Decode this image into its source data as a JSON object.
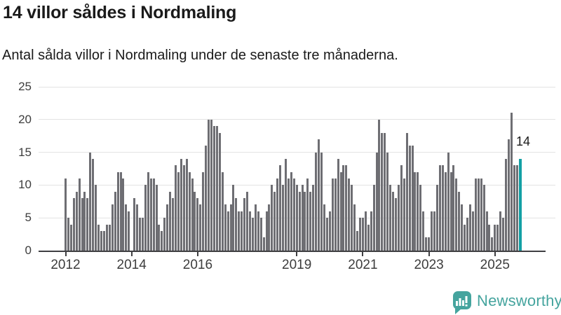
{
  "header": {
    "title": "14 villor såldes i Nordmaling",
    "subtitle": "Antal sålda villor i Nordmaling under de senaste tre månaderna."
  },
  "chart_data": {
    "type": "bar",
    "title": "14 villor såldes i Nordmaling",
    "subtitle": "Antal sålda villor i Nordmaling under de senaste tre månaderna.",
    "xlabel": "",
    "ylabel": "",
    "frequency": "monthly",
    "x_start": "2012-01",
    "x_end": "2025-10",
    "ylim": [
      0,
      25
    ],
    "yticks": [
      0,
      5,
      10,
      15,
      20,
      25
    ],
    "xticks": [
      {
        "label": "2012",
        "year": 2012
      },
      {
        "label": "2014",
        "year": 2014
      },
      {
        "label": "2016",
        "year": 2016
      },
      {
        "label": "2019",
        "year": 2019
      },
      {
        "label": "2021",
        "year": 2021
      },
      {
        "label": "2023",
        "year": 2023
      },
      {
        "label": "2025",
        "year": 2025
      }
    ],
    "grid": "horizontal",
    "legend": "none",
    "bar_color": "#6e6e73",
    "values": [
      11,
      5,
      4,
      8,
      9,
      11,
      8,
      9,
      8,
      15,
      14,
      10,
      4,
      3,
      3,
      4,
      4,
      7,
      9,
      12,
      12,
      11,
      7,
      6,
      0,
      8,
      7,
      5,
      5,
      10,
      12,
      11,
      11,
      10,
      4,
      3,
      5,
      7,
      9,
      8,
      13,
      12,
      14,
      13,
      14,
      12,
      11,
      9,
      8,
      7,
      12,
      16,
      20,
      20,
      19,
      19,
      18,
      12,
      7,
      6,
      7,
      10,
      8,
      6,
      6,
      8,
      9,
      6,
      5,
      7,
      6,
      5,
      2,
      6,
      7,
      10,
      9,
      11,
      13,
      10,
      14,
      11,
      12,
      11,
      10,
      9,
      10,
      9,
      11,
      9,
      10,
      15,
      17,
      15,
      7,
      5,
      6,
      11,
      11,
      14,
      12,
      13,
      13,
      11,
      10,
      7,
      3,
      5,
      5,
      6,
      4,
      6,
      10,
      15,
      20,
      18,
      18,
      15,
      10,
      9,
      8,
      10,
      13,
      11,
      18,
      16,
      16,
      12,
      12,
      10,
      6,
      2,
      2,
      6,
      6,
      10,
      13,
      13,
      12,
      15,
      12,
      13,
      11,
      9,
      7,
      4,
      5,
      7,
      6,
      11,
      11,
      11,
      10,
      6,
      4,
      2,
      4,
      4,
      6,
      5,
      14,
      17,
      21,
      13,
      13,
      14
    ],
    "highlight": {
      "index": 165,
      "value": 14,
      "label": "14",
      "color": "#12a0a4"
    }
  },
  "footer": {
    "brand": "Newsworthy",
    "logo_icon": "bar-chart-speech-bubble-icon",
    "logo_color": "#45a49e"
  }
}
